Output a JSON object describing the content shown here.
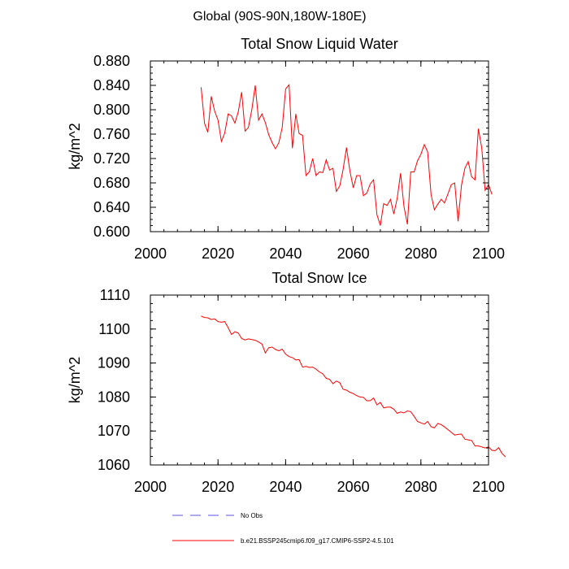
{
  "figure_title": "Global (90S-90N,180W-180E)",
  "chart_data": [
    {
      "type": "line",
      "title": "Total Snow Liquid Water",
      "xlabel": "",
      "ylabel": "kg/m^2",
      "xlim": [
        2000,
        2100
      ],
      "ylim": [
        0.6,
        0.88
      ],
      "xticks": [
        2000,
        2020,
        2040,
        2060,
        2080,
        2100
      ],
      "yticks": [
        0.6,
        0.64,
        0.68,
        0.72,
        0.76,
        0.8,
        0.84,
        0.88
      ],
      "ytick_labels": [
        "0.600",
        "0.640",
        "0.680",
        "0.720",
        "0.760",
        "0.800",
        "0.840",
        "0.880"
      ],
      "series": [
        {
          "name": "b.e21.BSSP245cmip6.f09_g17.CMIP6-SSP2-4.5.101",
          "color": "#ff0000",
          "x_start": 2015,
          "values": [
            0.837,
            0.778,
            0.763,
            0.822,
            0.798,
            0.783,
            0.748,
            0.762,
            0.793,
            0.79,
            0.778,
            0.797,
            0.829,
            0.765,
            0.771,
            0.8,
            0.84,
            0.783,
            0.793,
            0.779,
            0.759,
            0.746,
            0.736,
            0.746,
            0.771,
            0.834,
            0.841,
            0.737,
            0.793,
            0.761,
            0.758,
            0.692,
            0.698,
            0.72,
            0.692,
            0.698,
            0.697,
            0.718,
            0.701,
            0.704,
            0.666,
            0.675,
            0.702,
            0.738,
            0.7,
            0.672,
            0.692,
            0.692,
            0.659,
            0.663,
            0.678,
            0.685,
            0.628,
            0.61,
            0.646,
            0.643,
            0.653,
            0.629,
            0.655,
            0.696,
            0.641,
            0.612,
            0.698,
            0.698,
            0.716,
            0.727,
            0.743,
            0.731,
            0.661,
            0.636,
            0.645,
            0.653,
            0.647,
            0.662,
            0.677,
            0.68,
            0.617,
            0.676,
            0.704,
            0.715,
            0.69,
            0.685,
            0.769,
            0.737,
            0.668,
            0.677,
            0.661
          ]
        }
      ]
    },
    {
      "type": "line",
      "title": "Total Snow Ice",
      "xlabel": "",
      "ylabel": "kg/m^2",
      "xlim": [
        2000,
        2100
      ],
      "ylim": [
        1060,
        1110
      ],
      "xticks": [
        2000,
        2020,
        2040,
        2060,
        2080,
        2100
      ],
      "yticks": [
        1060,
        1070,
        1080,
        1090,
        1100,
        1110
      ],
      "ytick_labels": [
        "1060",
        "1070",
        "1080",
        "1090",
        "1100",
        "1110"
      ],
      "series": [
        {
          "name": "b.e21.BSSP245cmip6.f09_g17.CMIP6-SSP2-4.5.101",
          "color": "#ff0000",
          "x_start": 2015,
          "values": [
            1103.8,
            1103.4,
            1103.3,
            1102.8,
            1103.0,
            1102.2,
            1102.0,
            1102.2,
            1100.4,
            1098.4,
            1099.2,
            1098.8,
            1097.2,
            1096.8,
            1097.1,
            1096.9,
            1096.7,
            1096.2,
            1095.6,
            1093.0,
            1094.5,
            1094.7,
            1094.0,
            1093.6,
            1094.1,
            1092.6,
            1091.9,
            1091.6,
            1090.9,
            1091.0,
            1088.8,
            1089.0,
            1088.7,
            1088.8,
            1088.2,
            1087.4,
            1086.8,
            1085.5,
            1085.2,
            1083.9,
            1084.7,
            1084.2,
            1082.3,
            1082.0,
            1081.4,
            1081.0,
            1080.4,
            1080.0,
            1079.9,
            1078.9,
            1078.9,
            1079.7,
            1077.7,
            1078.4,
            1076.8,
            1077.0,
            1077.0,
            1076.4,
            1075.2,
            1075.6,
            1075.3,
            1075.9,
            1075.7,
            1074.3,
            1072.8,
            1072.4,
            1072.0,
            1072.8,
            1071.3,
            1070.9,
            1072.2,
            1071.9,
            1071.2,
            1070.4,
            1069.6,
            1068.8,
            1069.0,
            1069.1,
            1067.6,
            1067.4,
            1067.2,
            1065.6,
            1065.6,
            1065.3,
            1065.0,
            1065.3,
            1064.3,
            1064.2,
            1065.1,
            1063.4,
            1062.4
          ]
        }
      ]
    }
  ],
  "legend": [
    {
      "label": "No Obs",
      "color": "#5a5ad8",
      "style": "dashed"
    },
    {
      "label": "b.e21.BSSP245cmip6.f09_g17.CMIP6-SSP2-4.5.101",
      "color": "#ff0000",
      "style": "solid"
    }
  ]
}
